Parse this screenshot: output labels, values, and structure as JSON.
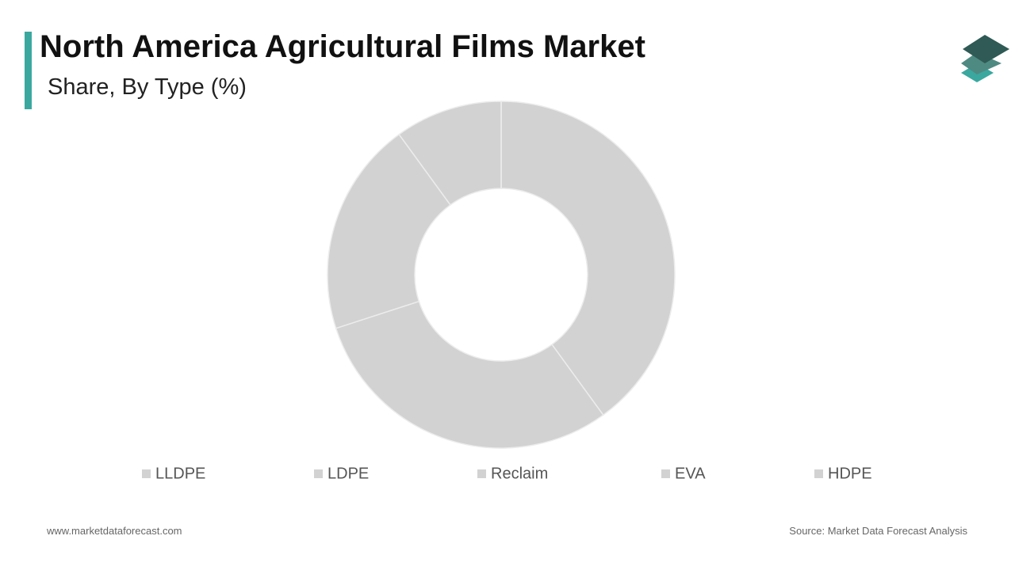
{
  "chart_data": {
    "type": "donut",
    "title": "North America Agricultural Films Market",
    "subtitle": "Share, By Type (%)",
    "categories": [
      "LLDPE",
      "LDPE",
      "Reclaim",
      "EVA",
      "HDPE"
    ],
    "values": [
      40,
      30,
      20,
      10,
      0
    ],
    "color": "#d3d2d3",
    "legend": "bottom",
    "footer_left": "www.marketdataforecast.com",
    "footer_right": "Source: Market Data Forecast Analysis"
  }
}
